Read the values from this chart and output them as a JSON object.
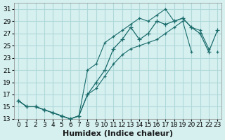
{
  "xlabel": "Humidex (Indice chaleur)",
  "ylabel": "",
  "background_color": "#d6f0f0",
  "grid_color": "#b0d8d8",
  "line_color": "#1a6b6b",
  "x_values": [
    0,
    1,
    2,
    3,
    4,
    5,
    6,
    7,
    8,
    9,
    10,
    11,
    12,
    13,
    14,
    15,
    16,
    17,
    18,
    19,
    20,
    21,
    22,
    23
  ],
  "y_main": [
    16,
    15,
    15,
    14.5,
    14,
    13.5,
    13,
    13.5,
    17,
    19,
    21,
    24.5,
    26,
    28,
    26,
    27,
    29,
    28.5,
    29,
    29.5,
    28,
    27,
    24,
    27.5
  ],
  "y_upper": [
    16,
    15,
    15,
    14.5,
    14,
    13.5,
    13,
    13.5,
    21,
    22,
    25.5,
    26.5,
    27.5,
    28.5,
    29.5,
    29,
    30,
    31,
    29,
    29.5,
    28,
    27.5,
    24.5,
    null
  ],
  "y_lower": [
    16,
    15,
    15,
    14.5,
    14,
    13.5,
    13,
    13.5,
    17,
    18,
    20,
    22,
    23.5,
    24.5,
    25,
    25.5,
    26,
    27,
    28,
    29,
    24,
    null,
    null,
    24
  ],
  "ylim": [
    13,
    32
  ],
  "xlim": [
    -0.5,
    23.5
  ],
  "yticks": [
    13,
    15,
    17,
    19,
    21,
    23,
    25,
    27,
    29,
    31
  ],
  "xticks": [
    0,
    1,
    2,
    3,
    4,
    5,
    6,
    7,
    8,
    9,
    10,
    11,
    12,
    13,
    14,
    15,
    16,
    17,
    18,
    19,
    20,
    21,
    22,
    23
  ],
  "tick_fontsize": 6.5,
  "xlabel_fontsize": 8
}
